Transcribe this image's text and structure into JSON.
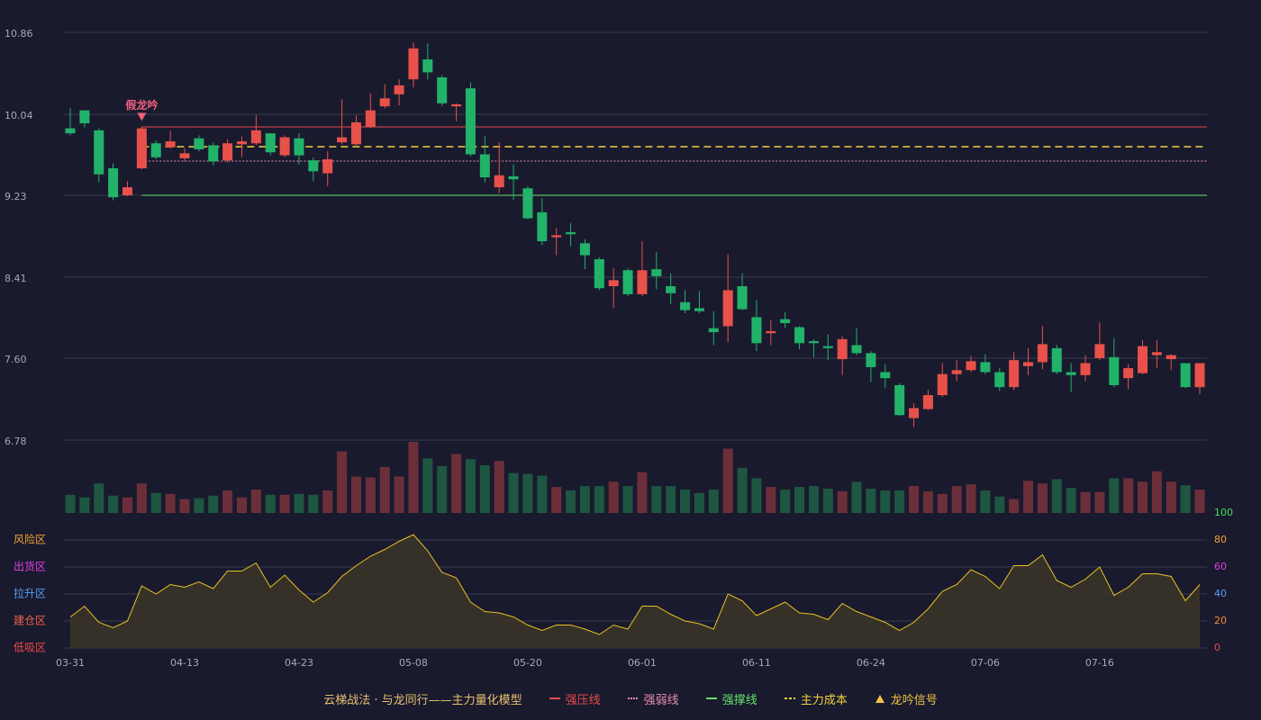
{
  "chart_data": {
    "type": "candlestick",
    "categories": [
      "03-31",
      null,
      null,
      null,
      null,
      null,
      null,
      null,
      "04-13",
      null,
      null,
      null,
      null,
      null,
      null,
      null,
      "04-23",
      null,
      null,
      null,
      null,
      null,
      null,
      null,
      "05-08",
      null,
      null,
      null,
      null,
      null,
      null,
      null,
      "05-20",
      null,
      null,
      null,
      null,
      null,
      null,
      null,
      "06-01",
      null,
      null,
      null,
      null,
      null,
      null,
      null,
      "06-11",
      null,
      null,
      null,
      null,
      null,
      null,
      null,
      "06-24",
      null,
      null,
      null,
      null,
      null,
      null,
      null,
      "07-06",
      null,
      null,
      null,
      null,
      null,
      null,
      null,
      "07-16",
      null,
      null,
      null,
      null,
      null,
      null,
      null
    ],
    "open": [
      9.9,
      10.08,
      9.88,
      9.5,
      9.23,
      9.5,
      9.75,
      9.71,
      9.6,
      9.8,
      9.73,
      9.58,
      9.74,
      9.75,
      9.85,
      9.63,
      9.8,
      9.58,
      9.45,
      9.76,
      9.74,
      9.91,
      10.12,
      10.24,
      10.39,
      10.59,
      10.41,
      10.12,
      10.3,
      9.64,
      9.31,
      9.42,
      9.3,
      9.06,
      8.81,
      8.86,
      8.75,
      8.59,
      8.32,
      8.48,
      8.24,
      8.49,
      8.32,
      8.16,
      8.1,
      7.9,
      7.92,
      8.32,
      8.01,
      7.85,
      7.99,
      7.91,
      7.77,
      7.72,
      7.59,
      7.73,
      7.65,
      7.46,
      7.33,
      7.0,
      7.09,
      7.23,
      7.44,
      7.48,
      7.56,
      7.46,
      7.31,
      7.52,
      7.56,
      7.7,
      7.46,
      7.43,
      7.6,
      7.61,
      7.4,
      7.45,
      7.63,
      7.59,
      7.55,
      7.31
    ],
    "close": [
      9.85,
      9.95,
      9.44,
      9.21,
      9.31,
      9.9,
      9.61,
      9.77,
      9.65,
      9.69,
      9.57,
      9.75,
      9.77,
      9.88,
      9.66,
      9.81,
      9.63,
      9.47,
      9.59,
      9.81,
      9.96,
      10.08,
      10.2,
      10.33,
      10.7,
      10.46,
      10.15,
      10.14,
      9.64,
      9.41,
      9.43,
      9.39,
      9.0,
      8.77,
      8.83,
      8.84,
      8.63,
      8.3,
      8.38,
      8.24,
      8.48,
      8.42,
      8.25,
      8.08,
      8.07,
      7.86,
      8.28,
      8.09,
      7.75,
      7.87,
      7.95,
      7.75,
      7.75,
      7.7,
      7.79,
      7.65,
      7.51,
      7.4,
      7.03,
      7.1,
      7.23,
      7.44,
      7.48,
      7.57,
      7.46,
      7.31,
      7.58,
      7.56,
      7.74,
      7.46,
      7.43,
      7.55,
      7.74,
      7.33,
      7.5,
      7.72,
      7.66,
      7.63,
      7.31,
      7.55
    ],
    "high": [
      10.1,
      10.08,
      9.9,
      9.55,
      9.37,
      9.92,
      9.78,
      9.88,
      9.7,
      9.83,
      9.76,
      9.79,
      9.82,
      10.03,
      9.85,
      9.83,
      9.85,
      9.61,
      9.67,
      10.19,
      10.03,
      10.25,
      10.34,
      10.39,
      10.76,
      10.75,
      10.43,
      10.15,
      10.36,
      9.82,
      9.76,
      9.54,
      9.32,
      9.2,
      8.9,
      8.95,
      8.79,
      8.61,
      8.5,
      8.5,
      8.77,
      8.66,
      8.45,
      8.28,
      8.27,
      8.07,
      8.64,
      8.45,
      8.18,
      7.98,
      8.06,
      7.92,
      7.79,
      7.84,
      7.82,
      7.9,
      7.67,
      7.54,
      7.35,
      7.15,
      7.28,
      7.55,
      7.58,
      7.62,
      7.64,
      7.5,
      7.66,
      7.7,
      7.92,
      7.73,
      7.55,
      7.63,
      7.96,
      7.8,
      7.54,
      7.78,
      7.78,
      7.64,
      7.55,
      7.55
    ],
    "low": [
      9.83,
      9.91,
      9.36,
      9.18,
      9.22,
      9.49,
      9.59,
      9.7,
      9.57,
      9.67,
      9.53,
      9.56,
      9.61,
      9.73,
      9.63,
      9.61,
      9.54,
      9.37,
      9.32,
      9.74,
      9.73,
      9.9,
      10.1,
      10.13,
      10.31,
      10.39,
      10.12,
      9.97,
      9.62,
      9.36,
      9.25,
      9.18,
      8.99,
      8.73,
      8.63,
      8.72,
      8.49,
      8.28,
      8.1,
      8.22,
      8.22,
      8.29,
      8.14,
      8.05,
      8.05,
      7.73,
      7.76,
      8.08,
      7.67,
      7.73,
      7.9,
      7.69,
      7.61,
      7.58,
      7.43,
      7.63,
      7.36,
      7.3,
      7.02,
      6.91,
      7.08,
      7.21,
      7.37,
      7.46,
      7.44,
      7.27,
      7.28,
      7.43,
      7.49,
      7.44,
      7.26,
      7.37,
      7.58,
      7.31,
      7.29,
      7.44,
      7.5,
      7.48,
      7.3,
      7.24
    ],
    "up_color": "#e8514a",
    "down_color": "#22b26a",
    "ylim": [
      6.78,
      10.86
    ],
    "yticks": [
      10.86,
      10.04,
      9.23,
      8.41,
      {
        "value": 7.6,
        "label": "7.60"
      },
      6.78
    ],
    "grid": true,
    "volume": {
      "values": [
        21,
        18,
        34,
        20,
        18,
        34,
        23,
        22,
        16,
        17,
        20,
        26,
        18,
        27,
        21,
        21,
        22,
        21,
        26,
        71,
        42,
        41,
        53,
        42,
        82,
        63,
        54,
        68,
        62,
        55,
        60,
        46,
        45,
        43,
        30,
        26,
        31,
        31,
        36,
        31,
        47,
        31,
        31,
        27,
        23,
        27,
        74,
        52,
        40,
        30,
        27,
        30,
        31,
        28,
        25,
        36,
        28,
        26,
        26,
        31,
        25,
        22,
        31,
        33,
        26,
        19,
        16,
        37,
        34,
        39,
        29,
        24,
        24,
        40,
        40,
        36,
        48,
        36,
        32,
        27
      ],
      "vlim": [
        0,
        85
      ],
      "up_color": "#6c2f39",
      "down_color": "#1e5641"
    },
    "levels": [
      {
        "name": "强压线",
        "value": 9.914,
        "color": "#e84a4a",
        "style": "solid"
      },
      {
        "name": "强弱线",
        "value": 9.572,
        "color": "#e98fb0",
        "style": "dotted"
      },
      {
        "name": "强撑线",
        "value": 9.23,
        "color": "#62e36a",
        "style": "solid"
      },
      {
        "name": "主力成本",
        "value": 9.716,
        "color": "#f2d23c",
        "style": "dashed"
      }
    ],
    "levels_start": 5,
    "signal": {
      "label": "假龙吟",
      "name": "龙吟信号",
      "at": 5,
      "color": "#f0607a",
      "legend_color": "#f2c244"
    },
    "indicator": {
      "values": [
        23,
        31,
        19,
        15,
        20,
        46,
        40,
        47,
        45,
        49,
        44,
        57,
        57,
        63,
        45,
        54,
        43,
        34,
        41,
        53,
        61,
        68,
        73,
        79,
        84,
        72,
        56,
        52,
        34,
        27,
        26,
        23,
        17,
        13,
        17,
        17,
        14,
        10,
        17,
        14,
        31,
        31,
        25,
        20,
        18,
        14,
        40,
        35,
        24,
        29,
        34,
        26,
        25,
        21,
        33,
        27,
        23,
        19,
        13,
        19,
        29,
        42,
        47,
        58,
        53,
        44,
        61,
        61,
        69,
        50,
        45,
        51,
        60,
        39,
        45,
        55,
        55,
        53,
        35,
        47
      ],
      "ylim": [
        0,
        100
      ],
      "yticks": [
        0,
        20,
        40,
        60,
        80,
        100
      ],
      "tick_colors": [
        "#f04848",
        "#f08a3a",
        "#5a9cf0",
        "#e040e0",
        "#f0a030",
        "#40e060"
      ],
      "zones": [
        {
          "label": "风险区",
          "value": 80,
          "color": "#f0a030"
        },
        {
          "label": "出货区",
          "value": 60,
          "color": "#e040e0"
        },
        {
          "label": "拉升区",
          "value": 40,
          "color": "#5a9cf0"
        },
        {
          "label": "建仓区",
          "value": 20,
          "color": "#f06048"
        },
        {
          "label": "低吸区",
          "value": 0,
          "color": "#f04848"
        }
      ],
      "line_color": "#e8c020",
      "fill_color": "#3a3428"
    },
    "legend_title": "云梯战法 · 与龙同行——主力量化模型"
  }
}
